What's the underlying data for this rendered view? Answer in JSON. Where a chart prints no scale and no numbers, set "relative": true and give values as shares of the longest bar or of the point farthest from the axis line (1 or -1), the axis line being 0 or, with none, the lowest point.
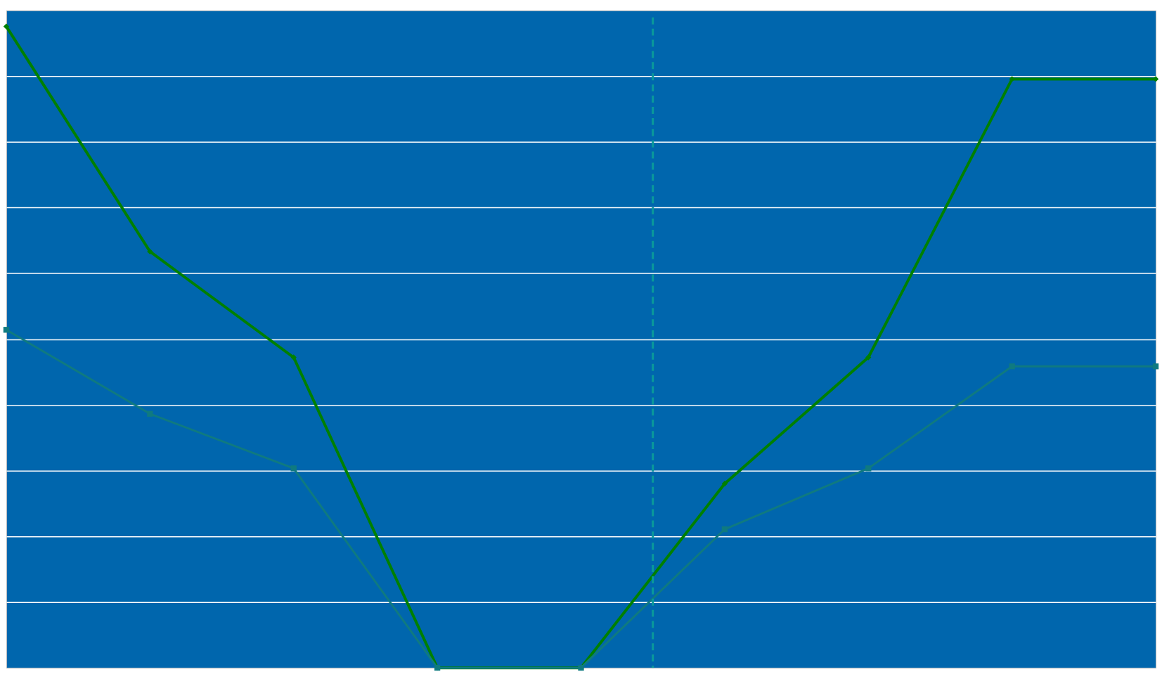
{
  "chart_data": {
    "type": "line",
    "relative": true,
    "categories": [
      null,
      null,
      null,
      null,
      null,
      null,
      null,
      null,
      null
    ],
    "grid": "y",
    "line_style": "solid",
    "series": [
      {
        "color": "#008000",
        "marker": "diamond",
        "values": [
          1,
          0.649,
          0.484,
          0,
          0,
          0.287,
          0.484,
          0.918,
          0.918
        ]
      },
      {
        "color": "#0f7a80",
        "marker": "square",
        "values": [
          0.527,
          0.396,
          0.311,
          0,
          0,
          0.216,
          0.311,
          0.47,
          0.47
        ]
      }
    ]
  }
}
